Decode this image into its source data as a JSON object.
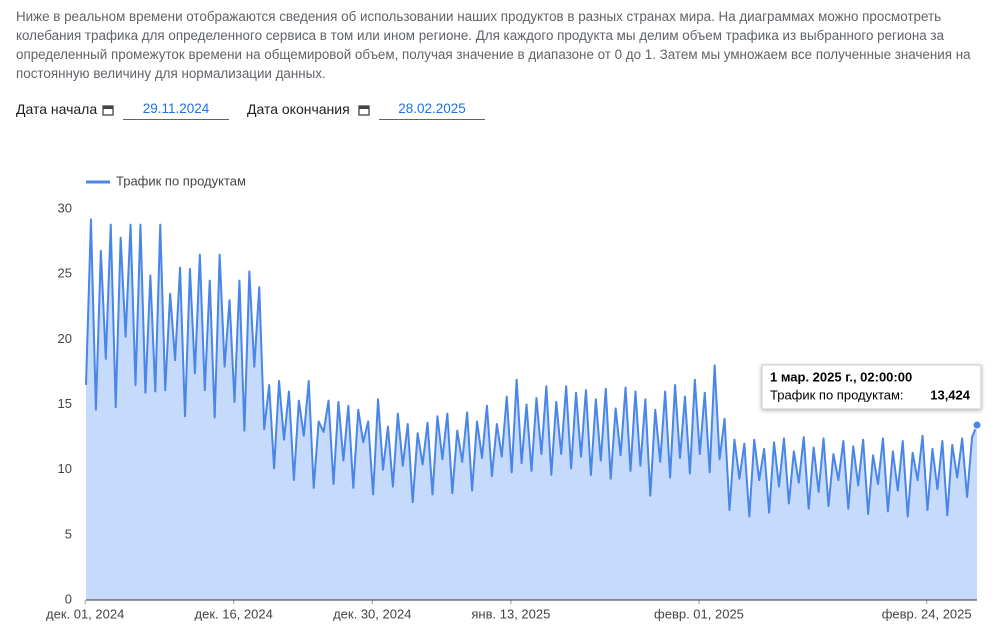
{
  "intro": "Ниже в реальном времени отображаются сведения об использовании наших продуктов в разных странах мира. На диаграммах можно просмотреть колебания трафика для определенного сервиса в том или ином регионе. Для каждого продукта мы делим объем трафика из выбранного региона за определенный промежуток времени на общемировой объем, получая значение в диапазоне от 0 до 1. Затем мы умножаем все полученные значения на постоянную величину для нормализации данных.",
  "filters": {
    "start_label": "Дата начала",
    "start_value": "29.11.2024",
    "end_label": "Дата окончания",
    "end_value": "28.02.2025"
  },
  "chart_data": {
    "type": "area",
    "series": [
      {
        "name": "Трафик по продуктам",
        "color": "#4a86e8",
        "fill": "#c6dafc",
        "values": [
          16.5,
          29.2,
          14.6,
          26.8,
          18.5,
          28.8,
          14.8,
          27.8,
          20.2,
          28.8,
          16.5,
          28.8,
          15.9,
          24.9,
          16.0,
          28.8,
          16.1,
          23.5,
          18.4,
          25.5,
          14.1,
          25.4,
          17.4,
          26.5,
          16.1,
          24.5,
          14.0,
          26.5,
          17.9,
          23.0,
          15.2,
          24.5,
          13.0,
          25.2,
          17.9,
          24.0,
          13.1,
          16.5,
          10.1,
          16.8,
          12.3,
          16.0,
          9.2,
          15.3,
          12.6,
          16.8,
          8.6,
          13.7,
          12.9,
          15.3,
          8.9,
          15.2,
          10.7,
          14.9,
          8.6,
          14.6,
          12.1,
          13.7,
          8.1,
          15.4,
          10.0,
          13.3,
          8.7,
          14.3,
          10.3,
          13.5,
          7.5,
          12.8,
          10.4,
          13.6,
          8.1,
          14.1,
          10.8,
          14.3,
          8.2,
          13.0,
          10.6,
          14.4,
          8.4,
          13.7,
          10.9,
          14.9,
          9.5,
          13.5,
          11.0,
          15.6,
          9.8,
          16.9,
          10.5,
          15.0,
          9.9,
          15.5,
          11.2,
          16.4,
          9.6,
          15.2,
          11.2,
          16.4,
          10.1,
          15.9,
          11.0,
          16.1,
          9.6,
          15.4,
          10.7,
          16.2,
          9.3,
          14.7,
          11.1,
          16.3,
          9.9,
          16.0,
          10.3,
          15.4,
          8.0,
          14.6,
          10.6,
          16.0,
          9.4,
          16.5,
          10.9,
          15.6,
          9.7,
          16.9,
          11.2,
          15.9,
          9.8,
          18.0,
          10.8,
          13.9,
          6.9,
          12.3,
          9.3,
          12.0,
          6.4,
          12.3,
          9.2,
          11.6,
          6.7,
          12.1,
          8.7,
          12.4,
          7.4,
          11.4,
          9.0,
          12.5,
          7.0,
          11.7,
          8.3,
          12.4,
          7.2,
          11.2,
          9.2,
          12.2,
          7.0,
          11.8,
          8.8,
          12.3,
          6.6,
          11.1,
          8.9,
          12.4,
          6.8,
          11.4,
          8.4,
          12.2,
          6.4,
          11.3,
          9.2,
          12.6,
          6.9,
          11.6,
          8.5,
          12.2,
          6.5,
          11.9,
          9.4,
          12.4,
          7.9,
          12.5,
          13.424
        ]
      }
    ],
    "x": [
      "2024-12-01T02:00",
      "2024-12-01T14:00",
      "2024-12-02T02:00",
      "2024-12-02T14:00",
      "2024-12-03T02:00",
      "2024-12-03T14:00",
      "2024-12-04T02:00",
      "2024-12-04T14:00",
      "2024-12-05T02:00",
      "2024-12-05T14:00",
      "2024-12-06T02:00",
      "2024-12-06T14:00",
      "2024-12-07T02:00",
      "2024-12-07T14:00",
      "2024-12-08T02:00",
      "2024-12-08T14:00",
      "2024-12-09T02:00",
      "2024-12-09T14:00",
      "2024-12-10T02:00",
      "2024-12-10T14:00",
      "2024-12-11T02:00",
      "2024-12-11T14:00",
      "2024-12-12T02:00",
      "2024-12-12T14:00",
      "2024-12-13T02:00",
      "2024-12-13T14:00",
      "2024-12-14T02:00",
      "2024-12-14T14:00",
      "2024-12-15T02:00",
      "2024-12-15T14:00",
      "2024-12-16T02:00",
      "2024-12-16T14:00",
      "2024-12-17T02:00",
      "2024-12-17T14:00",
      "2024-12-18T02:00",
      "2024-12-18T14:00",
      "2024-12-19T02:00",
      "2024-12-19T14:00",
      "2024-12-20T02:00",
      "2024-12-20T14:00",
      "2024-12-21T02:00",
      "2024-12-21T14:00",
      "2024-12-22T02:00",
      "2024-12-22T14:00",
      "2024-12-23T02:00",
      "2024-12-23T14:00",
      "2024-12-24T02:00",
      "2024-12-24T14:00",
      "2024-12-25T02:00",
      "2024-12-25T14:00",
      "2024-12-26T02:00",
      "2024-12-26T14:00",
      "2024-12-27T02:00",
      "2024-12-27T14:00",
      "2024-12-28T02:00",
      "2024-12-28T14:00",
      "2024-12-29T02:00",
      "2024-12-29T14:00",
      "2024-12-30T02:00",
      "2024-12-30T14:00",
      "2024-12-31T02:00",
      "2024-12-31T14:00",
      "2025-01-01T02:00",
      "2025-01-01T14:00",
      "2025-01-02T02:00",
      "2025-01-02T14:00",
      "2025-01-03T02:00",
      "2025-01-03T14:00",
      "2025-01-04T02:00",
      "2025-01-04T14:00",
      "2025-01-05T02:00",
      "2025-01-05T14:00",
      "2025-01-06T02:00",
      "2025-01-06T14:00",
      "2025-01-07T02:00",
      "2025-01-07T14:00",
      "2025-01-08T02:00",
      "2025-01-08T14:00",
      "2025-01-09T02:00",
      "2025-01-09T14:00",
      "2025-01-10T02:00",
      "2025-01-10T14:00",
      "2025-01-11T02:00",
      "2025-01-11T14:00",
      "2025-01-12T02:00",
      "2025-01-12T14:00",
      "2025-01-13T02:00",
      "2025-01-13T14:00",
      "2025-01-14T02:00",
      "2025-01-14T14:00",
      "2025-01-15T02:00",
      "2025-01-15T14:00",
      "2025-01-16T02:00",
      "2025-01-16T14:00",
      "2025-01-17T02:00",
      "2025-01-17T14:00",
      "2025-01-18T02:00",
      "2025-01-18T14:00",
      "2025-01-19T02:00",
      "2025-01-19T14:00",
      "2025-01-20T02:00",
      "2025-01-20T14:00",
      "2025-01-21T02:00",
      "2025-01-21T14:00",
      "2025-01-22T02:00",
      "2025-01-22T14:00",
      "2025-01-23T02:00",
      "2025-01-23T14:00",
      "2025-01-24T02:00",
      "2025-01-24T14:00",
      "2025-01-25T02:00",
      "2025-01-25T14:00",
      "2025-01-26T02:00",
      "2025-01-26T14:00",
      "2025-01-27T02:00",
      "2025-01-27T14:00",
      "2025-01-28T02:00",
      "2025-01-28T14:00",
      "2025-01-29T02:00",
      "2025-01-29T14:00",
      "2025-01-30T02:00",
      "2025-01-30T14:00",
      "2025-01-31T02:00",
      "2025-01-31T14:00",
      "2025-02-01T02:00",
      "2025-02-01T14:00",
      "2025-02-02T02:00",
      "2025-02-02T14:00",
      "2025-02-03T02:00",
      "2025-02-03T14:00",
      "2025-02-04T02:00",
      "2025-02-04T14:00",
      "2025-02-05T02:00",
      "2025-02-05T14:00",
      "2025-02-06T02:00",
      "2025-02-06T14:00",
      "2025-02-07T02:00",
      "2025-02-07T14:00",
      "2025-02-08T02:00",
      "2025-02-08T14:00",
      "2025-02-09T02:00",
      "2025-02-09T14:00",
      "2025-02-10T02:00",
      "2025-02-10T14:00",
      "2025-02-11T02:00",
      "2025-02-11T14:00",
      "2025-02-12T02:00",
      "2025-02-12T14:00",
      "2025-02-13T02:00",
      "2025-02-13T14:00",
      "2025-02-14T02:00",
      "2025-02-14T14:00",
      "2025-02-15T02:00",
      "2025-02-15T14:00",
      "2025-02-16T02:00",
      "2025-02-16T14:00",
      "2025-02-17T02:00",
      "2025-02-17T14:00",
      "2025-02-18T02:00",
      "2025-02-18T14:00",
      "2025-02-19T02:00",
      "2025-02-19T14:00",
      "2025-02-20T02:00",
      "2025-02-20T14:00",
      "2025-02-21T02:00",
      "2025-02-21T14:00",
      "2025-02-22T02:00",
      "2025-02-22T14:00",
      "2025-02-23T02:00",
      "2025-02-23T14:00",
      "2025-02-24T02:00",
      "2025-02-24T14:00",
      "2025-02-25T02:00",
      "2025-02-25T14:00",
      "2025-02-26T02:00",
      "2025-02-26T14:00",
      "2025-02-27T02:00",
      "2025-02-27T14:00",
      "2025-02-28T02:00",
      "2025-02-28T14:00",
      "2025-03-01T02:00"
    ],
    "xlim": [
      "2024-12-01T02:00",
      "2025-03-01T02:00"
    ],
    "xticks": [
      {
        "value": "2024-12-01T00:00",
        "label": "дек. 01, 2024"
      },
      {
        "value": "2024-12-16T00:00",
        "label": "дек. 16, 2024"
      },
      {
        "value": "2024-12-30T00:00",
        "label": "дек. 30, 2024"
      },
      {
        "value": "2025-01-13T00:00",
        "label": "янв. 13, 2025"
      },
      {
        "value": "2025-02-01T00:00",
        "label": "февр. 01, 2025"
      },
      {
        "value": "2025-02-24T00:00",
        "label": "февр. 24, 2025"
      }
    ],
    "ylim": [
      0,
      30
    ],
    "yticks": [
      0,
      5,
      10,
      15,
      20,
      25,
      30
    ],
    "grid": false,
    "legend": "top-left",
    "tooltip": {
      "title": "1 мар. 2025 г., 02:00:00",
      "label": "Трафик по продуктам:",
      "value_label": "13,424"
    }
  }
}
